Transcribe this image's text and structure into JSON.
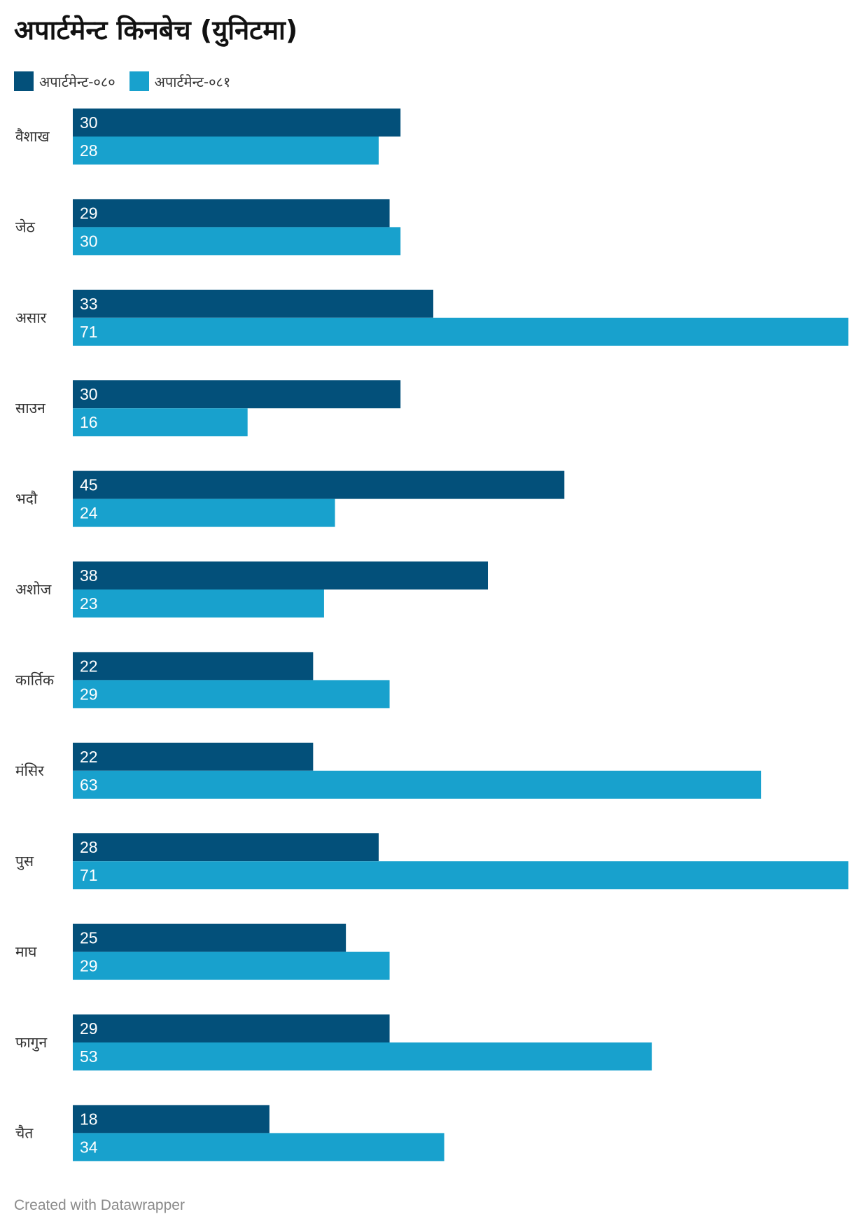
{
  "chart_data": {
    "type": "bar",
    "orientation": "horizontal",
    "title": "अपार्टमेन्ट किनबेच (युनिटमा)",
    "categories": [
      "वैशाख",
      "जेठ",
      "असार",
      "साउन",
      "भदौ",
      "अशोज",
      "कार्तिक",
      "मंसिर",
      "पुस",
      "माघ",
      "फागुन",
      "चैत"
    ],
    "series": [
      {
        "name": "अपार्टमेन्ट-०८०",
        "color": "#03507a",
        "values": [
          30,
          29,
          33,
          30,
          45,
          38,
          22,
          22,
          28,
          25,
          29,
          18
        ]
      },
      {
        "name": "अपार्टमेन्ट-०८१",
        "color": "#18a1cd",
        "values": [
          28,
          30,
          71,
          16,
          24,
          23,
          29,
          63,
          71,
          29,
          53,
          34
        ]
      }
    ],
    "xlim": [
      0,
      71
    ],
    "grid": false,
    "legend_position": "top-left",
    "data_labels": "inside-left"
  },
  "footer": {
    "credit": "Created with Datawrapper"
  }
}
